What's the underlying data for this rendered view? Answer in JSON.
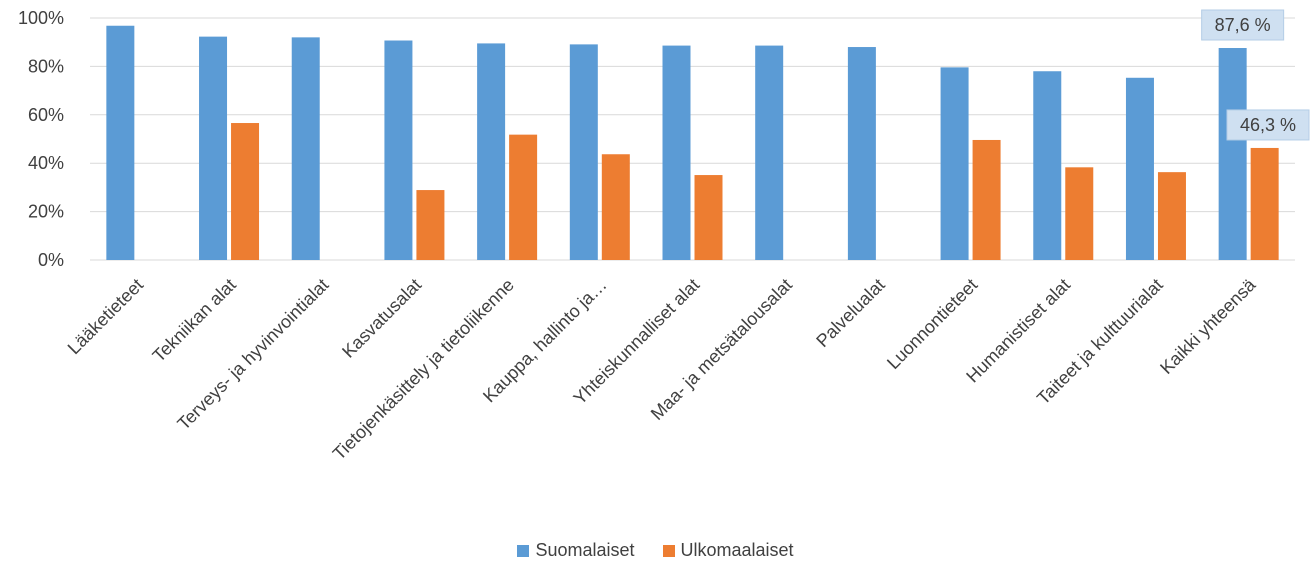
{
  "chart_data": {
    "type": "bar",
    "categories": [
      "Lääketieteet",
      "Tekniikan alat",
      "Terveys- ja hyvinvointialat",
      "Kasvatusalat",
      "Tietojenkäsittely ja tietoliikenne",
      "Kauppa, hallinto ja…",
      "Yhteiskunnalliset alat",
      "Maa- ja metsätalousalat",
      "Palvelualat",
      "Luonnontieteet",
      "Humanistiset alat",
      "Taiteet ja kulttuurialat",
      "Kaikki yhteensä"
    ],
    "series": [
      {
        "name": "Suomalaiset",
        "color": "#5b9bd5",
        "values": [
          96.8,
          92.3,
          92.0,
          90.7,
          89.5,
          89.1,
          88.6,
          88.6,
          88.0,
          79.6,
          78.0,
          75.3,
          87.6
        ]
      },
      {
        "name": "Ulkomaalaiset",
        "color": "#ed7d31",
        "values": [
          null,
          56.6,
          null,
          28.9,
          51.8,
          43.7,
          35.1,
          null,
          null,
          49.6,
          38.3,
          36.3,
          46.3
        ]
      }
    ],
    "data_labels": [
      {
        "series": 0,
        "category": 12,
        "text": "87,6 %"
      },
      {
        "series": 1,
        "category": 12,
        "text": "46,3 %"
      }
    ],
    "y_ticks": [
      "0%",
      "20%",
      "40%",
      "60%",
      "80%",
      "100%"
    ],
    "ylim": [
      0,
      100
    ],
    "grid": true,
    "legend_position": "bottom"
  }
}
